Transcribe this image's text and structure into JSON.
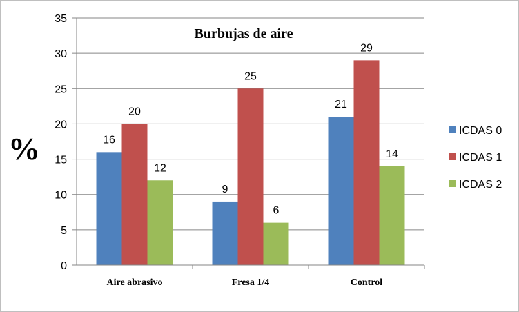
{
  "chart_data": {
    "type": "bar",
    "title": "Burbujas de aire",
    "xlabel": "",
    "ylabel": "%",
    "ylim": [
      0,
      35
    ],
    "yticks": [
      0,
      5,
      10,
      15,
      20,
      25,
      30,
      35
    ],
    "grid": true,
    "legend_position": "right",
    "categories": [
      "Aire abrasivo",
      "Fresa 1/4",
      "Control"
    ],
    "series": [
      {
        "name": "ICDAS 0",
        "color": "#4f81bd",
        "values": [
          16,
          9,
          21
        ]
      },
      {
        "name": "ICDAS 1",
        "color": "#c0504d",
        "values": [
          20,
          25,
          29
        ]
      },
      {
        "name": "ICDAS 2",
        "color": "#9bbb59",
        "values": [
          12,
          6,
          14
        ]
      }
    ]
  }
}
